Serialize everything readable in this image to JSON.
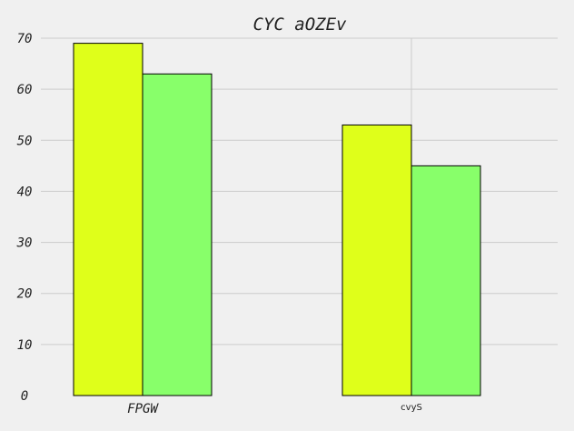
{
  "chart_data": {
    "type": "bar",
    "title": "CYC aOZEv",
    "categories": [
      "FPGW",
      "cvyS"
    ],
    "series": [
      {
        "values": [
          69,
          53
        ],
        "color": "#dfff1a"
      },
      {
        "values": [
          63,
          45
        ],
        "color": "#88ff6a"
      }
    ],
    "ylim": [
      0,
      70
    ],
    "yticks": [
      "0",
      "10",
      "20",
      "30",
      "40",
      "50",
      "60",
      "70"
    ],
    "grid": true,
    "background": "#f0f0f0",
    "grid_color": "#cccccc"
  }
}
